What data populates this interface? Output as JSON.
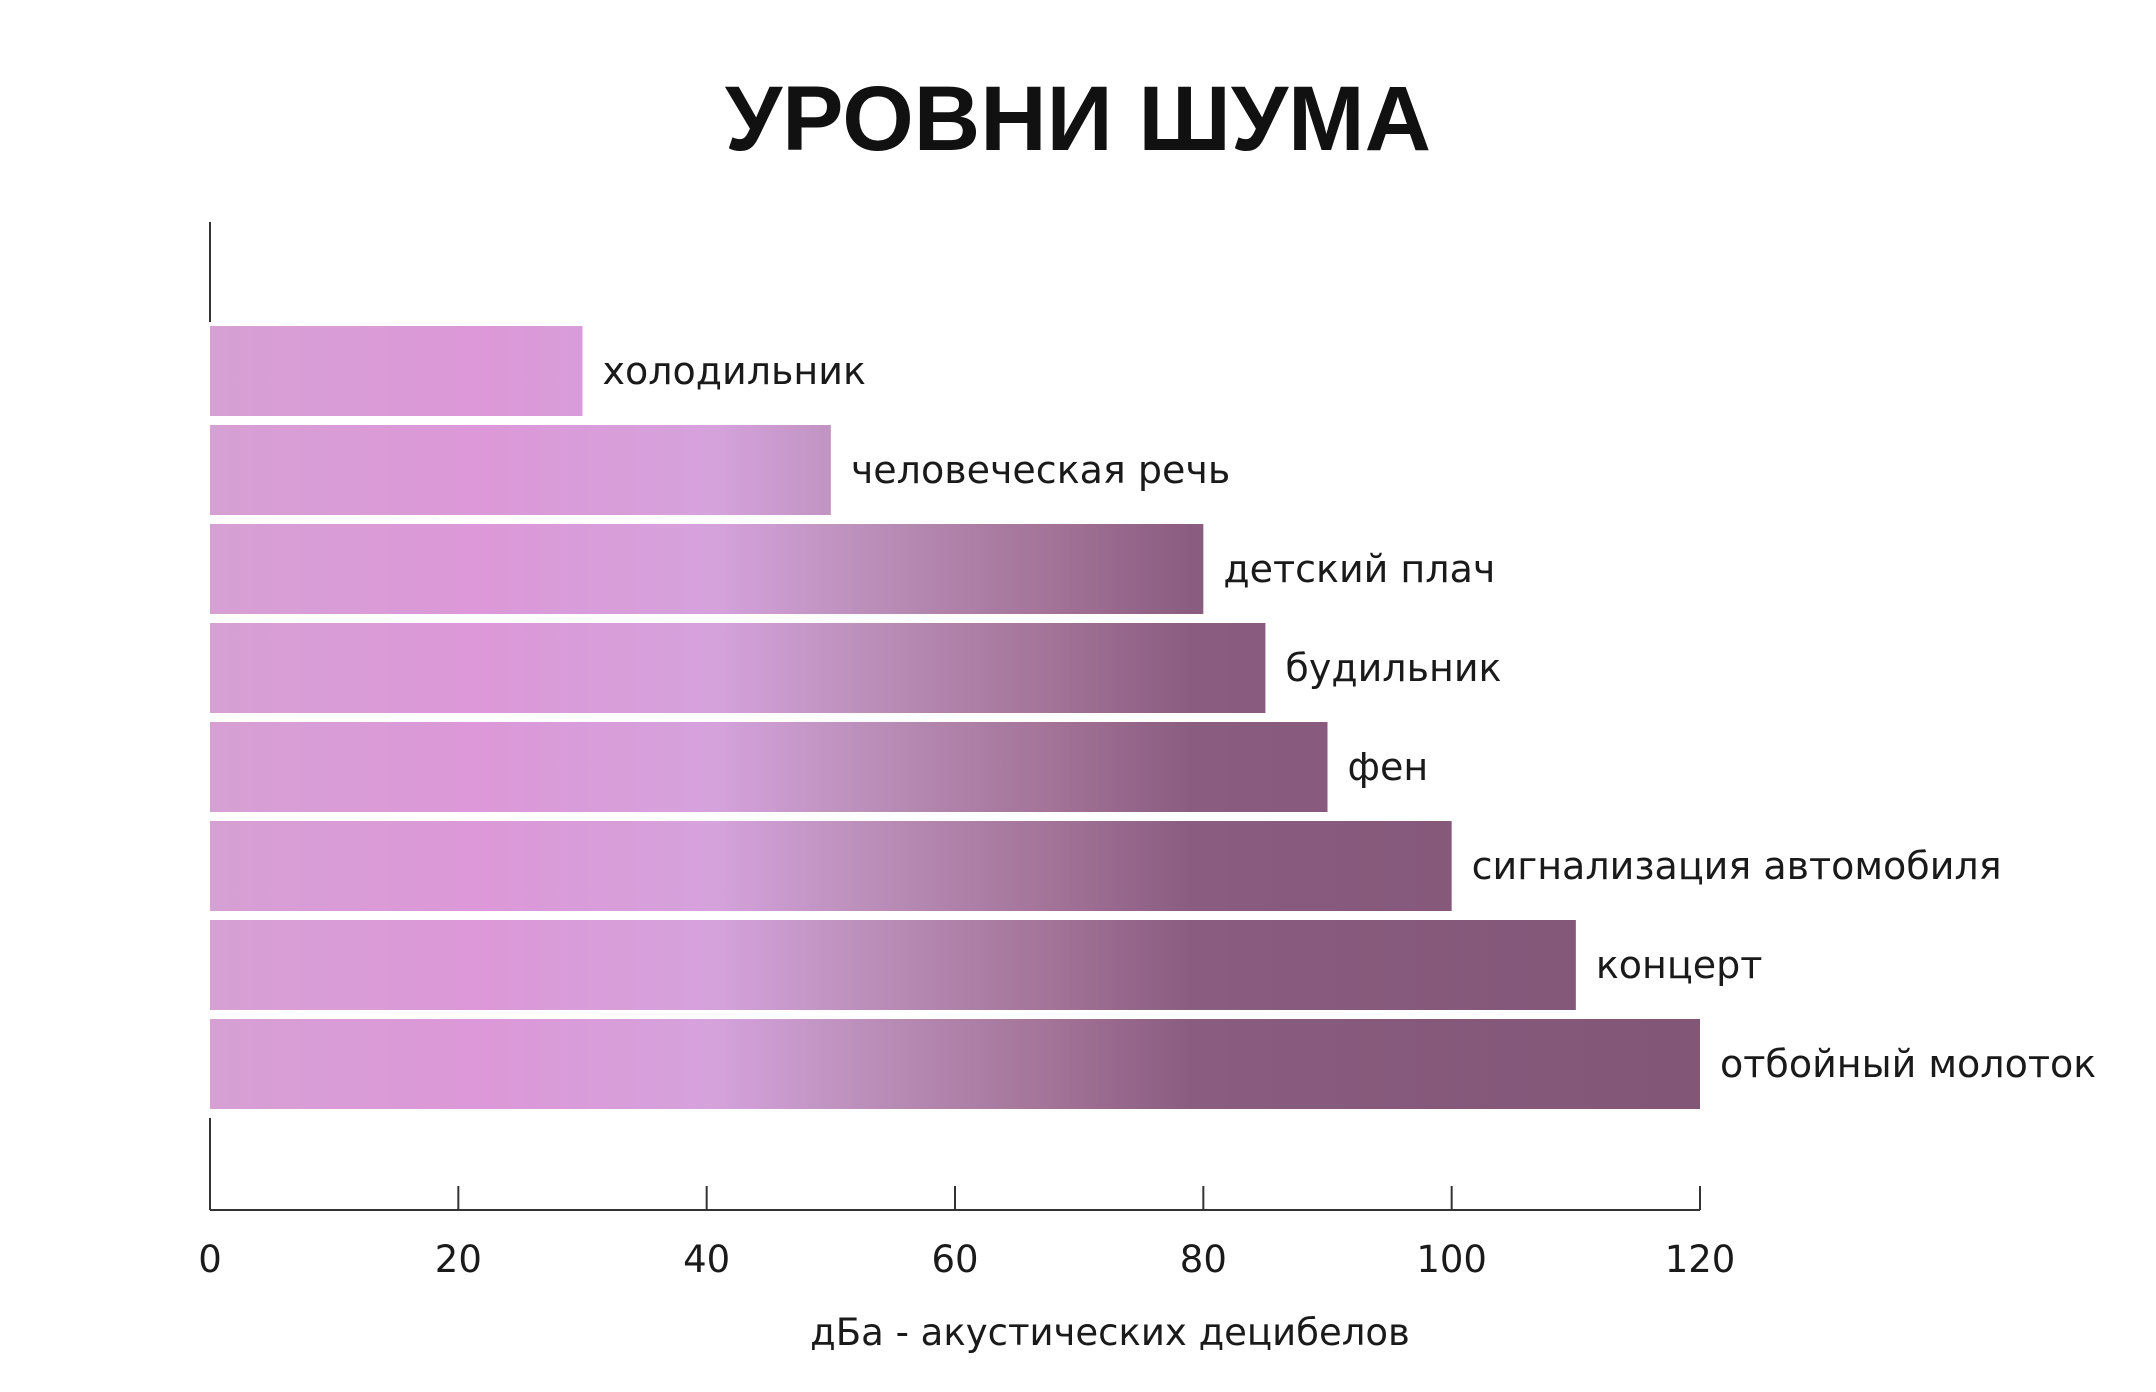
{
  "chart_data": {
    "type": "bar",
    "orientation": "horizontal",
    "title": "УРОВНИ ШУМА",
    "xlabel": "дБа - акустических децибелов",
    "ylabel": "",
    "xlim": [
      0,
      120
    ],
    "xticks": [
      "0",
      "20",
      "40",
      "60",
      "80",
      "100",
      "120"
    ],
    "categories": [
      "холодильник",
      "человеческая речь",
      "детский плач",
      "будильник",
      "фен",
      "сигнализация автомобиля",
      "концерт",
      "отбойный молоток"
    ],
    "values": [
      30,
      50,
      80,
      85,
      90,
      100,
      110,
      120
    ],
    "grid": false,
    "legend": "none",
    "colors": {
      "bar_light": "#d99ad6",
      "bar_mid": "#d49fd8",
      "bar_dark": "#835a7a",
      "axis": "#333333",
      "text": "#1a1a1a"
    }
  }
}
